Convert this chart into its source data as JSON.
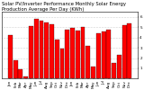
{
  "title": "Solar PV/Inverter Performance Monthly Solar Energy Production Average Per Day (KWh)",
  "bar_values": [
    4.2,
    1.8,
    0.9,
    0.2,
    5.1,
    5.8,
    5.6,
    5.5,
    5.3,
    3.8,
    2.9,
    4.8,
    4.9,
    4.7,
    5.0,
    3.2,
    1.2,
    4.4,
    4.6,
    4.8,
    1.5,
    2.3,
    5.2,
    5.4
  ],
  "bar_color": "#FF0000",
  "bg_color": "#FFFFFF",
  "plot_bg_color": "#FFFFFF",
  "grid_color": "#AAAAAA",
  "title_color": "#000000",
  "ylim": [
    0,
    6.5
  ],
  "yticks": [
    1,
    2,
    3,
    4,
    5,
    6
  ],
  "ylabel_values": [
    "1",
    "2",
    "3",
    "4",
    "5",
    "6"
  ],
  "months": [
    "Jan",
    "Feb",
    "Mar",
    "Apr",
    "May",
    "Jun",
    "Jul",
    "Aug",
    "Sep",
    "Oct",
    "Nov",
    "Dec",
    "Jan",
    "Feb",
    "Mar",
    "Apr",
    "May",
    "Jun",
    "Jul",
    "Aug",
    "Sep",
    "Oct",
    "Nov",
    "Dec"
  ],
  "title_fontsize": 3.8,
  "tick_fontsize": 3.0,
  "border_color": "#000000",
  "bar_edgecolor": "#000000",
  "bar_linewidth": 0.2
}
